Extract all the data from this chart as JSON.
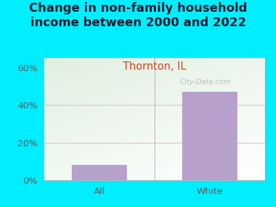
{
  "title": "Change in non-family household\nincome between 2000 and 2022",
  "subtitle": "Thornton, IL",
  "categories": [
    "All",
    "White"
  ],
  "values": [
    8.0,
    47.0
  ],
  "bar_color": "#b8a0cc",
  "title_color": "#1a1a2e",
  "subtitle_color": "#cc4422",
  "outer_bg": "#00eeff",
  "plot_bg_color_topleft": "#d8edc8",
  "plot_bg_color_right": "#e8f0e8",
  "plot_bg_color_bottom": "#f0f0f0",
  "ylim": [
    0,
    65
  ],
  "yticks": [
    0,
    20,
    40,
    60
  ],
  "ytick_labels": [
    "0%",
    "20%",
    "40%",
    "60%"
  ],
  "title_fontsize": 12.5,
  "subtitle_fontsize": 11,
  "tick_fontsize": 9.5,
  "watermark": "City-Data.com",
  "gridline_color": "#ddaabb",
  "bar_width": 0.5
}
